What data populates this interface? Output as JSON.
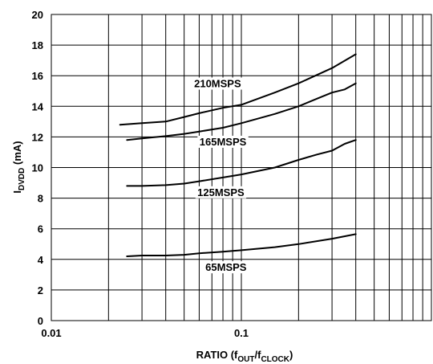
{
  "chart_data": {
    "type": "line",
    "xscale": "log",
    "xlim": [
      0.01,
      1
    ],
    "ylim": [
      0,
      20
    ],
    "grid": true,
    "y_ticks": [
      "0",
      "2",
      "4",
      "6",
      "8",
      "10",
      "12",
      "14",
      "16",
      "18",
      "20"
    ],
    "x_ticks": [
      "0.01",
      "0.1"
    ],
    "ylabel": {
      "main": "I",
      "sub": "DVDD",
      "rest": " (mA)"
    },
    "xlabel": {
      "main": "RATIO (f",
      "sub1": "OUT",
      "mid": "/f",
      "sub2": "CLOCK",
      "end": ")"
    },
    "series": [
      {
        "name": "210MSPS",
        "x": [
          0.023,
          0.03,
          0.04,
          0.05,
          0.06,
          0.08,
          0.1,
          0.15,
          0.2,
          0.3,
          0.4
        ],
        "y": [
          12.8,
          12.9,
          13.0,
          13.3,
          13.55,
          13.9,
          14.1,
          14.9,
          15.5,
          16.5,
          17.4
        ],
        "label_at": [
          0.075,
          15.3
        ]
      },
      {
        "name": "165MSPS",
        "x": [
          0.025,
          0.03,
          0.04,
          0.05,
          0.06,
          0.08,
          0.1,
          0.15,
          0.2,
          0.25,
          0.3,
          0.35,
          0.4
        ],
        "y": [
          11.8,
          11.9,
          12.05,
          12.2,
          12.35,
          12.6,
          12.9,
          13.5,
          14.0,
          14.5,
          14.9,
          15.1,
          15.5
        ],
        "label_at": [
          0.08,
          11.5
        ]
      },
      {
        "name": "125MSPS",
        "x": [
          0.025,
          0.03,
          0.04,
          0.05,
          0.06,
          0.08,
          0.1,
          0.15,
          0.2,
          0.25,
          0.3,
          0.35,
          0.4
        ],
        "y": [
          8.8,
          8.8,
          8.85,
          8.95,
          9.1,
          9.35,
          9.55,
          10.0,
          10.5,
          10.85,
          11.1,
          11.55,
          11.8
        ],
        "label_at": [
          0.078,
          8.2
        ]
      },
      {
        "name": "65MSPS",
        "x": [
          0.025,
          0.03,
          0.04,
          0.05,
          0.06,
          0.08,
          0.1,
          0.15,
          0.2,
          0.3,
          0.4
        ],
        "y": [
          4.2,
          4.25,
          4.25,
          4.3,
          4.4,
          4.5,
          4.6,
          4.8,
          5.0,
          5.35,
          5.65
        ],
        "label_at": [
          0.083,
          3.3
        ]
      }
    ]
  }
}
